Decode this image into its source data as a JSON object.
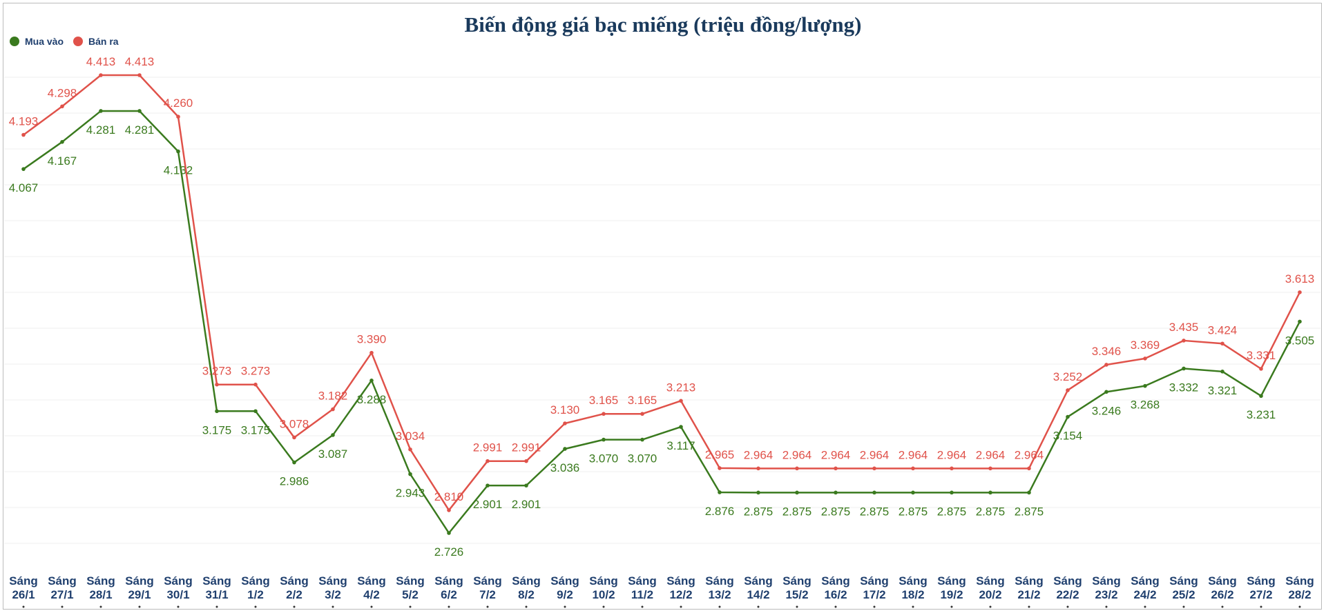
{
  "chart_data": {
    "type": "line",
    "title": "Biến động giá bạc miếng (triệu đồng/lượng)",
    "legend_position": "top-left",
    "grid": true,
    "categories": [
      "Sáng 26/1",
      "Sáng 27/1",
      "Sáng 28/1",
      "Sáng 29/1",
      "Sáng 30/1",
      "Sáng 31/1",
      "Sáng 1/2",
      "Sáng 2/2",
      "Sáng 3/2",
      "Sáng 4/2",
      "Sáng 5/2",
      "Sáng 6/2",
      "Sáng 7/2",
      "Sáng 8/2",
      "Sáng 9/2",
      "Sáng 10/2",
      "Sáng 11/2",
      "Sáng 12/2",
      "Sáng 13/2",
      "Sáng 14/2",
      "Sáng 15/2",
      "Sáng 16/2",
      "Sáng 17/2",
      "Sáng 18/2",
      "Sáng 19/2",
      "Sáng 20/2",
      "Sáng 21/2",
      "Sáng 22/2",
      "Sáng 23/2",
      "Sáng 24/2",
      "Sáng 25/2",
      "Sáng 26/2",
      "Sáng 27/2",
      "Sáng 28/2"
    ],
    "series": [
      {
        "name": "Mua vào",
        "color": "#3a7a1e",
        "values": [
          4.067,
          4.167,
          4.281,
          4.281,
          4.132,
          3.175,
          3.175,
          2.986,
          3.087,
          3.288,
          2.943,
          2.726,
          2.901,
          2.901,
          3.036,
          3.07,
          3.07,
          3.117,
          2.876,
          2.875,
          2.875,
          2.875,
          2.875,
          2.875,
          2.875,
          2.875,
          2.875,
          3.154,
          3.246,
          3.268,
          3.332,
          3.321,
          3.231,
          3.505
        ]
      },
      {
        "name": "Bán ra",
        "color": "#e0524a",
        "values": [
          4.193,
          4.298,
          4.413,
          4.413,
          4.26,
          3.273,
          3.273,
          3.078,
          3.182,
          3.39,
          3.034,
          2.81,
          2.991,
          2.991,
          3.13,
          3.165,
          3.165,
          3.213,
          2.965,
          2.964,
          2.964,
          2.964,
          2.964,
          2.964,
          2.964,
          2.964,
          2.964,
          3.252,
          3.346,
          3.369,
          3.435,
          3.424,
          3.331,
          3.613
        ]
      }
    ]
  }
}
